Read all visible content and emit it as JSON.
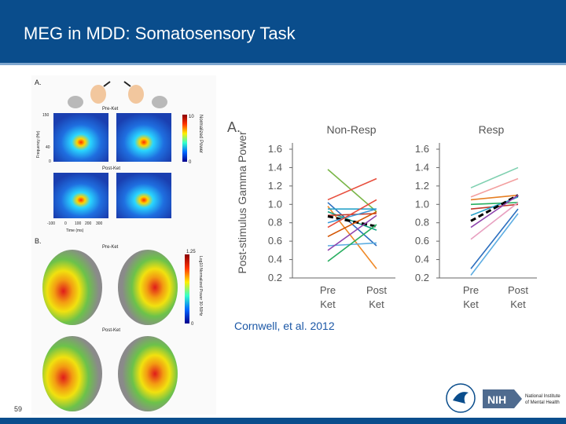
{
  "slide": {
    "title": "MEG in MDD: Somatosensory Task",
    "page_number": "59",
    "citation": "Cornwell, et al. 2012"
  },
  "figure_left": {
    "panel_a_label": "A.",
    "panel_b_label": "B.",
    "pre_ket": "Pre-Ket",
    "post_ket": "Post-Ket",
    "freq_axis_label": "Frequency (Hz)",
    "freq_ticks": [
      "150",
      "40",
      "0"
    ],
    "time_axis_label": "Time (ms)",
    "time_ticks": [
      "-100",
      "0",
      "100",
      "200",
      "300"
    ],
    "colorbar_top_label": "Normalized Power",
    "colorbar_ticks": [
      "10",
      "0"
    ],
    "colorbar_bottom_label": "Log10 Normalized Power 30-50Hz",
    "colorbar_bottom_ticks": [
      "1.25",
      "0"
    ]
  },
  "figure_right": {
    "panel_label": "A.",
    "ylabel": "Post-stimulus Gamma Power",
    "left_title": "Non-Resp",
    "right_title": "Resp",
    "y_ticks": [
      "1.6",
      "1.4",
      "1.2",
      "1.0",
      "0.8",
      "0.6",
      "0.4",
      "0.2"
    ],
    "x_pre": "Pre",
    "x_post": "Post",
    "x_ket": "Ket"
  },
  "chart_data": [
    {
      "type": "line",
      "title": "Non-Resp",
      "categories": [
        "Pre Ket",
        "Post Ket"
      ],
      "ylim": [
        0.2,
        1.7
      ],
      "series": [
        {
          "values": [
            1.38,
            0.92
          ],
          "color": "#7ab648"
        },
        {
          "values": [
            1.05,
            1.28
          ],
          "color": "#e8503f"
        },
        {
          "values": [
            1.02,
            0.55
          ],
          "color": "#2c6fbf"
        },
        {
          "values": [
            0.98,
            0.3
          ],
          "color": "#f08a28"
        },
        {
          "values": [
            0.95,
            0.95
          ],
          "color": "#2ba3c9"
        },
        {
          "values": [
            0.92,
            0.72
          ],
          "color": "#16a085"
        },
        {
          "values": [
            0.88,
            0.9
          ],
          "color": "#c0392b"
        },
        {
          "values": [
            0.87,
            0.76
          ],
          "color": "#000000",
          "dashed": true
        },
        {
          "values": [
            0.8,
            0.95
          ],
          "color": "#3a9ad9"
        },
        {
          "values": [
            0.75,
            1.05
          ],
          "color": "#e74c3c"
        },
        {
          "values": [
            0.65,
            0.92
          ],
          "color": "#d35400"
        },
        {
          "values": [
            0.55,
            0.58
          ],
          "color": "#5dade2"
        },
        {
          "values": [
            0.5,
            0.88
          ],
          "color": "#8e44ad"
        },
        {
          "values": [
            0.38,
            0.78
          ],
          "color": "#27ae60"
        }
      ]
    },
    {
      "type": "line",
      "title": "Resp",
      "categories": [
        "Pre Ket",
        "Post Ket"
      ],
      "ylim": [
        0.2,
        1.7
      ],
      "series": [
        {
          "values": [
            1.18,
            1.4
          ],
          "color": "#7fd0b0"
        },
        {
          "values": [
            1.08,
            1.28
          ],
          "color": "#f3a0a0"
        },
        {
          "values": [
            1.05,
            1.1
          ],
          "color": "#e67e22"
        },
        {
          "values": [
            1.0,
            1.02
          ],
          "color": "#27ae60"
        },
        {
          "values": [
            0.95,
            1.0
          ],
          "color": "#c0392b"
        },
        {
          "values": [
            0.88,
            1.08
          ],
          "color": "#2ba3c9"
        },
        {
          "values": [
            0.82,
            1.1
          ],
          "color": "#000000",
          "dashed": true
        },
        {
          "values": [
            0.75,
            1.1
          ],
          "color": "#8e44ad"
        },
        {
          "values": [
            0.62,
            1.02
          ],
          "color": "#e8a0c0"
        },
        {
          "values": [
            0.3,
            0.95
          ],
          "color": "#2c6fbf"
        },
        {
          "values": [
            0.23,
            0.9
          ],
          "color": "#5dade2"
        }
      ]
    }
  ]
}
